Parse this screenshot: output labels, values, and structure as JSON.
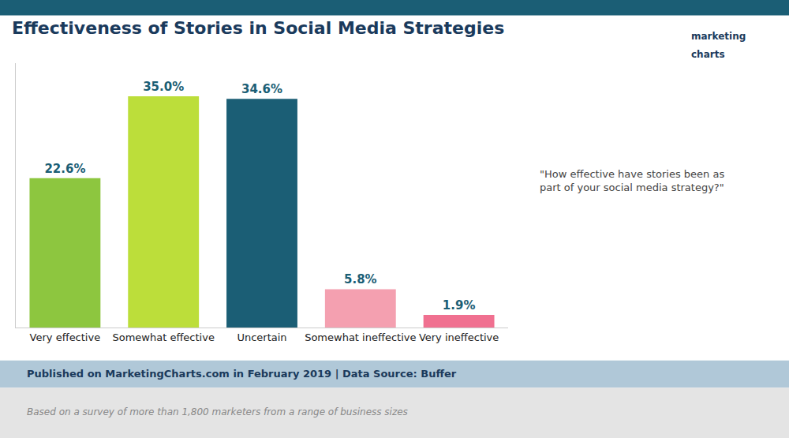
{
  "chart_data": {
    "type": "bar",
    "title": "Effectiveness of Stories in Social Media Strategies",
    "categories": [
      "Very effective",
      "Somewhat effective",
      "Uncertain",
      "Somewhat ineffective",
      "Very ineffective"
    ],
    "values": [
      22.6,
      35.0,
      34.6,
      5.8,
      1.9
    ],
    "value_labels": [
      "22.6%",
      "35.0%",
      "34.6%",
      "5.8%",
      "1.9%"
    ],
    "colors": [
      "#8DC63F",
      "#BCDE3A",
      "#1B5E75",
      "#F4A0B0",
      "#F07090"
    ],
    "data_labels": true,
    "ylim": [
      0,
      40
    ],
    "yticks": [],
    "tick_labels": "x",
    "grid": false,
    "annotations": [
      "\"How effective have stories been as\npart of your social media strategy?\"",
      "Published on MarketingCharts.com in February 2019 | Data Source: Buffer",
      "Based on a survey of more than 1,800 marketers from a range of business sizes",
      "marketing",
      "charts"
    ]
  }
}
